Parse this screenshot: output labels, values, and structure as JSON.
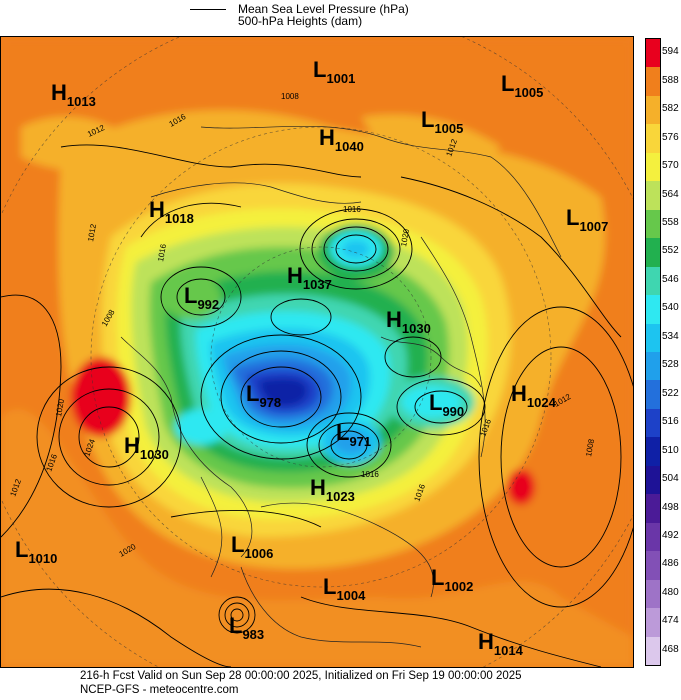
{
  "legend": {
    "mslp_label": "Mean Sea Level Pressure (hPa)",
    "heights_label": "500-hPa Heights (dam)"
  },
  "colorbar": {
    "ticks": [
      "594",
      "588",
      "582",
      "576",
      "570",
      "564",
      "558",
      "552",
      "546",
      "540",
      "534",
      "528",
      "522",
      "516",
      "510",
      "504",
      "498",
      "492",
      "486",
      "480",
      "474",
      "468"
    ],
    "colors": [
      "#e8001e",
      "#f07f1c",
      "#f5b02a",
      "#f9d63a",
      "#f4f03e",
      "#bde25a",
      "#66c84b",
      "#22b04f",
      "#3fd6b0",
      "#2fe8f1",
      "#1dc4f0",
      "#20a0eb",
      "#2370dc",
      "#1d41c8",
      "#0f20a6",
      "#1e1296",
      "#4b1b97",
      "#6a36a8",
      "#8250b6",
      "#9e73c7",
      "#bc9ad9",
      "#dcc8ec"
    ]
  },
  "pressure_centers": [
    {
      "type": "H",
      "value": "1013"
    },
    {
      "type": "L",
      "value": "1001"
    },
    {
      "type": "L",
      "value": "1005"
    },
    {
      "type": "L",
      "value": "1005"
    },
    {
      "type": "H",
      "value": "1040"
    },
    {
      "type": "H",
      "value": "1018"
    },
    {
      "type": "L",
      "value": "1007"
    },
    {
      "type": "H",
      "value": "1037"
    },
    {
      "type": "L",
      "value": "992"
    },
    {
      "type": "H",
      "value": "1030"
    },
    {
      "type": "L",
      "value": "978"
    },
    {
      "type": "L",
      "value": "990"
    },
    {
      "type": "H",
      "value": "1024"
    },
    {
      "type": "L",
      "value": "971"
    },
    {
      "type": "H",
      "value": "1030"
    },
    {
      "type": "H",
      "value": "1023"
    },
    {
      "type": "L",
      "value": "1010"
    },
    {
      "type": "L",
      "value": "1006"
    },
    {
      "type": "L",
      "value": "1004"
    },
    {
      "type": "L",
      "value": "1002"
    },
    {
      "type": "L",
      "value": "983"
    },
    {
      "type": "H",
      "value": "1014"
    }
  ],
  "isobar_labels": [
    "1012",
    "1016",
    "1008",
    "1012",
    "1016",
    "1008",
    "1020",
    "1024",
    "1016",
    "1012",
    "1012",
    "1016",
    "1020",
    "1016",
    "1012",
    "1008",
    "1016",
    "1016",
    "1020"
  ],
  "footer": {
    "line1": "216-h Fcst Valid on Sun Sep 28 00:00:00 2025, Initialized on Fri Sep 19 00:00:00 2025",
    "line2": "NCEP-GFS - meteocentre.com"
  }
}
